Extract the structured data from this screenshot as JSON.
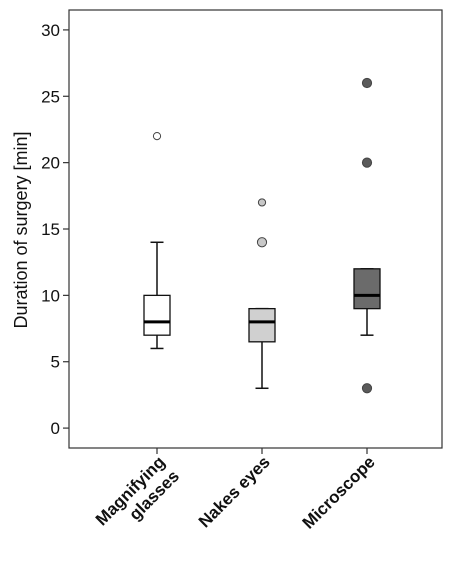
{
  "chart_data": {
    "type": "boxplot",
    "ylabel": "Duration of surgery [min]",
    "ylim": [
      -1.5,
      31.5
    ],
    "yticks": [
      0,
      5,
      10,
      15,
      20,
      25,
      30
    ],
    "grid": false,
    "legend": "none",
    "categories": [
      {
        "name": "Magnifying glasses",
        "lines": [
          "Magnifying",
          "glasses"
        ],
        "fill": "#ffffff",
        "outlier_fill": "#ffffff",
        "whisker_low": 6,
        "q1": 7,
        "median": 8,
        "q3": 10,
        "whisker_high": 14,
        "outliers": [
          22
        ]
      },
      {
        "name": "Nakes eyes",
        "lines": [
          "Nakes eyes"
        ],
        "fill": "#d0d0d0",
        "outlier_fill": "#c8c8c8",
        "whisker_low": 3,
        "q1": 6.5,
        "median": 8,
        "q3": 9,
        "whisker_high": 9,
        "outliers": [
          14,
          17
        ]
      },
      {
        "name": "Microscope",
        "lines": [
          "Microscope"
        ],
        "fill": "#6b6b6b",
        "outlier_fill": "#5a5a5a",
        "whisker_low": 7,
        "q1": 9,
        "median": 10,
        "q3": 12,
        "whisker_high": 12,
        "outliers": [
          3,
          20,
          26
        ]
      }
    ]
  }
}
